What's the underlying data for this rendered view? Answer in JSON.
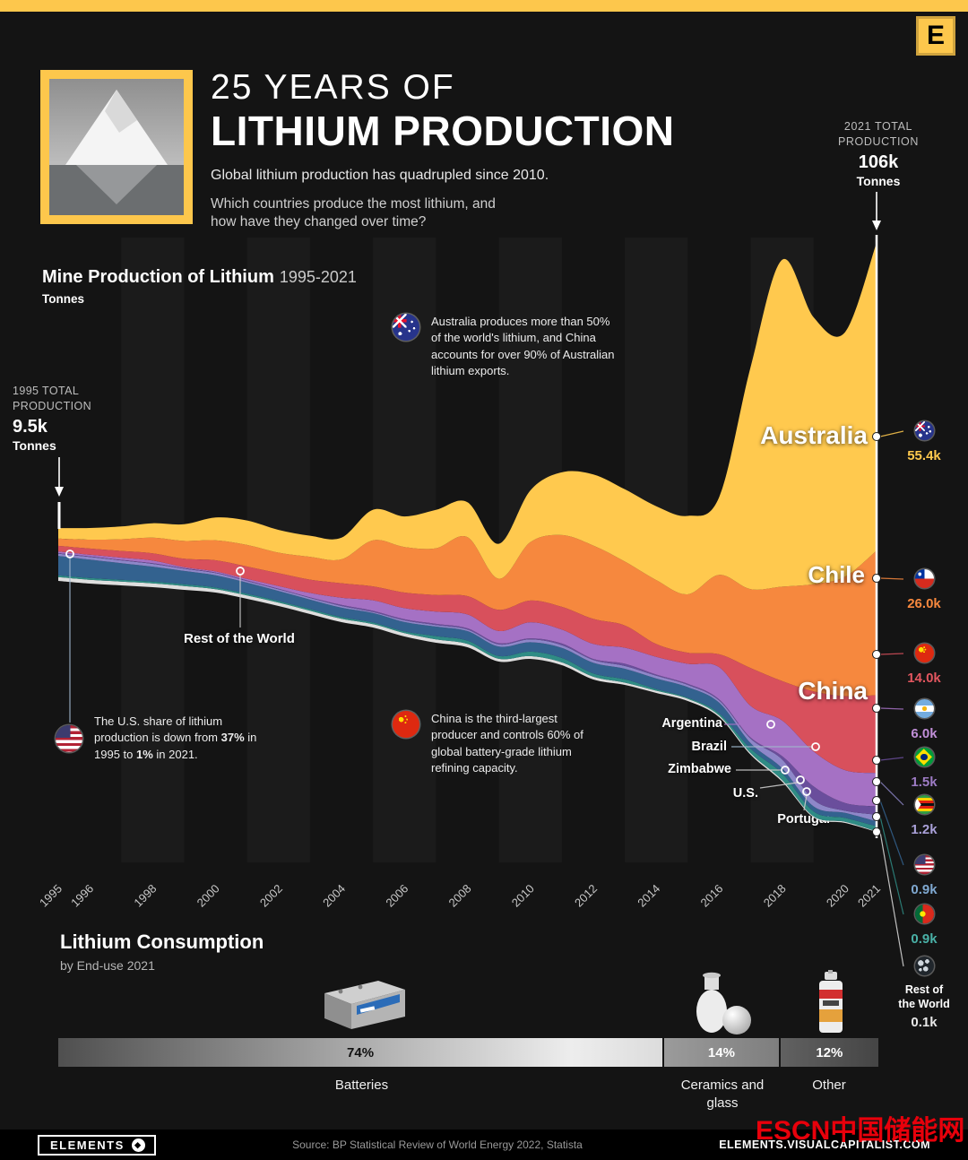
{
  "brand": {
    "logo_letter": "E",
    "elements_label": "ELEMENTS",
    "elements_glyph": "◆",
    "source": "Source: BP Statistical Review of World Energy 2022,  Statista",
    "site": "ELEMENTS.VISUALCAPITALIST.COM",
    "watermark": "ESCN中国储能网"
  },
  "header": {
    "title_line1": "25 YEARS OF",
    "title_line2": "LITHIUM PRODUCTION",
    "subtitle1": "Global lithium production has quadrupled since 2010.",
    "subtitle2": "Which countries produce the most lithium, and how have they changed over time?"
  },
  "totals": {
    "start": {
      "label": "1995 TOTAL PRODUCTION",
      "value": "9.5k",
      "unit": "Tonnes"
    },
    "end": {
      "label": "2021 TOTAL PRODUCTION",
      "value": "106k",
      "unit": "Tonnes"
    }
  },
  "chart_header": {
    "title": "Mine Production of Lithium",
    "range": "1995-2021",
    "unit": "Tonnes"
  },
  "notes": {
    "australia": "Australia produces more than 50% of the world's lithium, and China accounts for over 90% of Australian lithium exports.",
    "china": "China is the third-largest producer and controls 60% of global battery-grade lithium refining capacity.",
    "us": {
      "t1": "The U.S. share of lithium production is down from ",
      "b1": "37%",
      "t2": " in 1995 to ",
      "b2": "1%",
      "t3": " in 2021."
    }
  },
  "area_labels": {
    "australia": "Australia",
    "chile": "Chile",
    "china": "China",
    "rest": "Rest of the World",
    "argentina": "Argentina",
    "brazil": "Brazil",
    "zimbabwe": "Zimbabwe",
    "us": "U.S.",
    "portugal": "Portugal"
  },
  "legend": {
    "items": [
      {
        "country": "Australia",
        "value": "55.4k",
        "color": "#ffc94e"
      },
      {
        "country": "Chile",
        "value": "26.0k",
        "color": "#f6883e"
      },
      {
        "country": "China",
        "value": "14.0k",
        "color": "#e2565f"
      },
      {
        "country": "Argentina",
        "value": "6.0k",
        "color": "#c18fd8"
      },
      {
        "country": "Brazil",
        "value": "1.5k",
        "color": "#9d7bc4"
      },
      {
        "country": "Zimbabwe",
        "value": "1.2k",
        "color": "#a9a0d8"
      },
      {
        "country": "U.S.",
        "value": "0.9k",
        "color": "#7fa8d0"
      },
      {
        "country": "Portugal",
        "value": "0.9k",
        "color": "#49b0a6"
      },
      {
        "country": "Rest of the World",
        "value": "0.1k",
        "color": "#e8e8e8"
      }
    ]
  },
  "consumption": {
    "title": "Lithium Consumption",
    "subtitle": "by End-use 2021",
    "segments": [
      {
        "label": "Batteries",
        "pct": "74%",
        "share": 74
      },
      {
        "label": "Ceramics and glass",
        "pct": "14%",
        "share": 14
      },
      {
        "label": "Other",
        "pct": "12%",
        "share": 12
      }
    ]
  },
  "chart_data": {
    "type": "area",
    "title": "Mine Production of Lithium 1995-2021",
    "ylabel": "Tonnes",
    "unit": "thousand tonnes",
    "legend_position": "right",
    "grid": false,
    "total_1995": 9.5,
    "total_2021": 106,
    "x": [
      1995,
      1996,
      1997,
      1998,
      1999,
      2000,
      2001,
      2002,
      2003,
      2004,
      2005,
      2006,
      2007,
      2008,
      2009,
      2010,
      2011,
      2012,
      2013,
      2014,
      2015,
      2016,
      2017,
      2018,
      2019,
      2020,
      2021
    ],
    "x_ticks": [
      "1995",
      "1996",
      "1998",
      "2000",
      "2002",
      "2004",
      "2006",
      "2008",
      "2010",
      "2012",
      "2014",
      "2016",
      "2018",
      "2020",
      "2021"
    ],
    "series": [
      {
        "name": "Australia",
        "color": "#FFC94E",
        "value_2021_label": "55.4k",
        "values": [
          1.9,
          2.1,
          2.3,
          2.6,
          3.0,
          4.1,
          4.4,
          4.1,
          3.8,
          3.9,
          5.5,
          5.5,
          6.9,
          6.3,
          6.3,
          9.3,
          11.3,
          12.8,
          13.0,
          13.3,
          14.1,
          14.0,
          40.0,
          58.8,
          48.0,
          44.0,
          55.4
        ]
      },
      {
        "name": "Chile",
        "color": "#F6883E",
        "value_2021_label": "26.0k",
        "values": [
          1.3,
          1.6,
          2.1,
          2.8,
          3.2,
          3.6,
          3.9,
          3.7,
          4.1,
          4.3,
          8.3,
          8.2,
          8.4,
          10.6,
          5.6,
          10.5,
          12.9,
          13.2,
          11.5,
          11.5,
          10.5,
          14.3,
          14.2,
          17.0,
          19.3,
          21.5,
          26.0
        ]
      },
      {
        "name": "China",
        "color": "#D8505C",
        "value_2021_label": "14.0k",
        "values": [
          1.0,
          1.1,
          1.2,
          1.3,
          1.5,
          2.0,
          2.2,
          2.3,
          2.4,
          2.6,
          2.5,
          2.8,
          3.0,
          3.3,
          3.8,
          3.9,
          4.1,
          4.5,
          4.0,
          2.3,
          2.0,
          2.3,
          6.8,
          7.1,
          10.8,
          13.3,
          14.0
        ]
      },
      {
        "name": "Argentina",
        "color": "#A571C4",
        "value_2021_label": "6.0k",
        "values": [
          0.3,
          0.3,
          0.4,
          0.5,
          0.2,
          0.2,
          0.3,
          0.5,
          0.8,
          1.3,
          1.9,
          2.0,
          2.2,
          2.5,
          2.2,
          2.9,
          2.5,
          2.7,
          2.9,
          3.2,
          3.6,
          5.8,
          5.7,
          6.4,
          6.3,
          5.9,
          6.0
        ]
      },
      {
        "name": "Brazil",
        "color": "#6A4E9C",
        "value_2021_label": "1.5k",
        "values": [
          0.1,
          0.1,
          0.1,
          0.1,
          0.1,
          0.1,
          0.1,
          0.1,
          0.1,
          0.2,
          0.2,
          0.2,
          0.2,
          0.2,
          0.2,
          0.2,
          0.3,
          0.2,
          0.4,
          0.2,
          0.2,
          0.2,
          0.2,
          0.6,
          2.4,
          1.4,
          1.5
        ]
      },
      {
        "name": "Zimbabwe",
        "color": "#8E87C9",
        "value_2021_label": "1.2k",
        "values": [
          0.4,
          0.5,
          0.5,
          0.5,
          0.4,
          0.4,
          0.3,
          0.3,
          0.3,
          0.3,
          0.2,
          0.3,
          0.3,
          0.3,
          0.4,
          0.5,
          0.5,
          0.5,
          0.5,
          0.5,
          0.4,
          0.4,
          0.8,
          1.6,
          1.2,
          0.4,
          1.2
        ]
      },
      {
        "name": "US",
        "color": "#33628F",
        "value_2021_label": "0.9k",
        "values": [
          3.5,
          3.3,
          3.0,
          2.7,
          2.4,
          2.2,
          2.0,
          1.8,
          1.7,
          1.7,
          1.7,
          1.7,
          1.7,
          1.7,
          1.7,
          1.7,
          1.8,
          1.9,
          1.9,
          1.9,
          1.9,
          1.9,
          1.0,
          0.9,
          0.9,
          0.9,
          0.9
        ]
      },
      {
        "name": "Portugal",
        "color": "#2F8C85",
        "value_2021_label": "0.9k",
        "values": [
          0.3,
          0.3,
          0.3,
          0.3,
          0.3,
          0.3,
          0.3,
          0.3,
          0.3,
          0.3,
          0.3,
          0.3,
          0.6,
          0.6,
          0.5,
          0.8,
          0.8,
          0.6,
          0.6,
          0.3,
          0.2,
          0.4,
          0.8,
          1.2,
          0.9,
          0.7,
          0.9
        ]
      },
      {
        "name": "Rest of the World",
        "color": "#DEDEDE",
        "value_2021_label": "0.1k",
        "values": [
          0.7,
          0.7,
          0.7,
          0.7,
          0.7,
          0.6,
          0.6,
          0.6,
          0.6,
          0.6,
          0.6,
          0.6,
          0.6,
          0.6,
          0.5,
          0.5,
          0.5,
          0.5,
          0.4,
          0.4,
          0.4,
          0.3,
          0.3,
          0.3,
          0.2,
          0.2,
          0.1
        ]
      }
    ]
  }
}
